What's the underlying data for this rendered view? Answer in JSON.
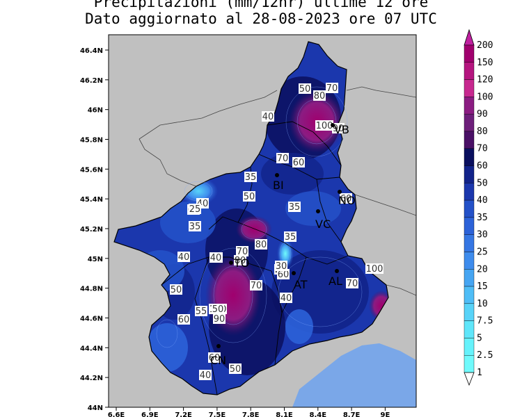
{
  "title_line1": "Precipitazioni (mm/12hr) ultime 12 ore",
  "title_line2": "Dato aggiornato al 28-08-2023 ore 07 UTC",
  "lat_ticks": [
    "46.4N",
    "46.2N",
    "46N",
    "45.8N",
    "45.6N",
    "45.4N",
    "45.2N",
    "45N",
    "44.8N",
    "44.6N",
    "44.4N",
    "44.2N",
    "44N"
  ],
  "lon_ticks": [
    "6.6E",
    "6.9E",
    "7.2E",
    "7.5E",
    "7.8E",
    "8.1E",
    "8.4E",
    "8.7E",
    "9E"
  ],
  "colorbar": {
    "labels": [
      "200",
      "150",
      "120",
      "100",
      "90",
      "80",
      "70",
      "60",
      "50",
      "40",
      "35",
      "30",
      "25",
      "20",
      "15",
      "10",
      "7.5",
      "5",
      "2.5",
      "1"
    ],
    "colors": [
      "#a0006e",
      "#b5157f",
      "#c7288f",
      "#8b1c82",
      "#6d1f7a",
      "#4a1066",
      "#0a0f5e",
      "#12238a",
      "#1b37ad",
      "#2451c8",
      "#2c62d8",
      "#3576e3",
      "#3e8ced",
      "#46a5f2",
      "#4fbdf6",
      "#58d3f8",
      "#5fe6fa",
      "#66f2fb",
      "#70fafc"
    ],
    "top_color": "#c020a0"
  },
  "cities": [
    {
      "code": "VB"
    },
    {
      "code": "BI"
    },
    {
      "code": "NO"
    },
    {
      "code": "VC"
    },
    {
      "code": "AT"
    },
    {
      "code": "AL"
    },
    {
      "code": "CN"
    },
    {
      "code": "TO"
    }
  ],
  "contour_labels": [
    "50",
    "80",
    "70",
    "40",
    "100",
    "90",
    "70",
    "60",
    "35",
    "40",
    "60",
    "50",
    "60",
    "25",
    "35",
    "35",
    "80",
    "70",
    "40",
    "80",
    "35",
    "25",
    "60",
    "40",
    "70",
    "40",
    "50",
    "70",
    "100",
    "90",
    "60",
    "55",
    "60",
    "40",
    "50",
    "100",
    "50",
    "40",
    "30"
  ],
  "colors": {
    "background_outside": "#c0c0c0",
    "sea": "#7aa7e8"
  }
}
